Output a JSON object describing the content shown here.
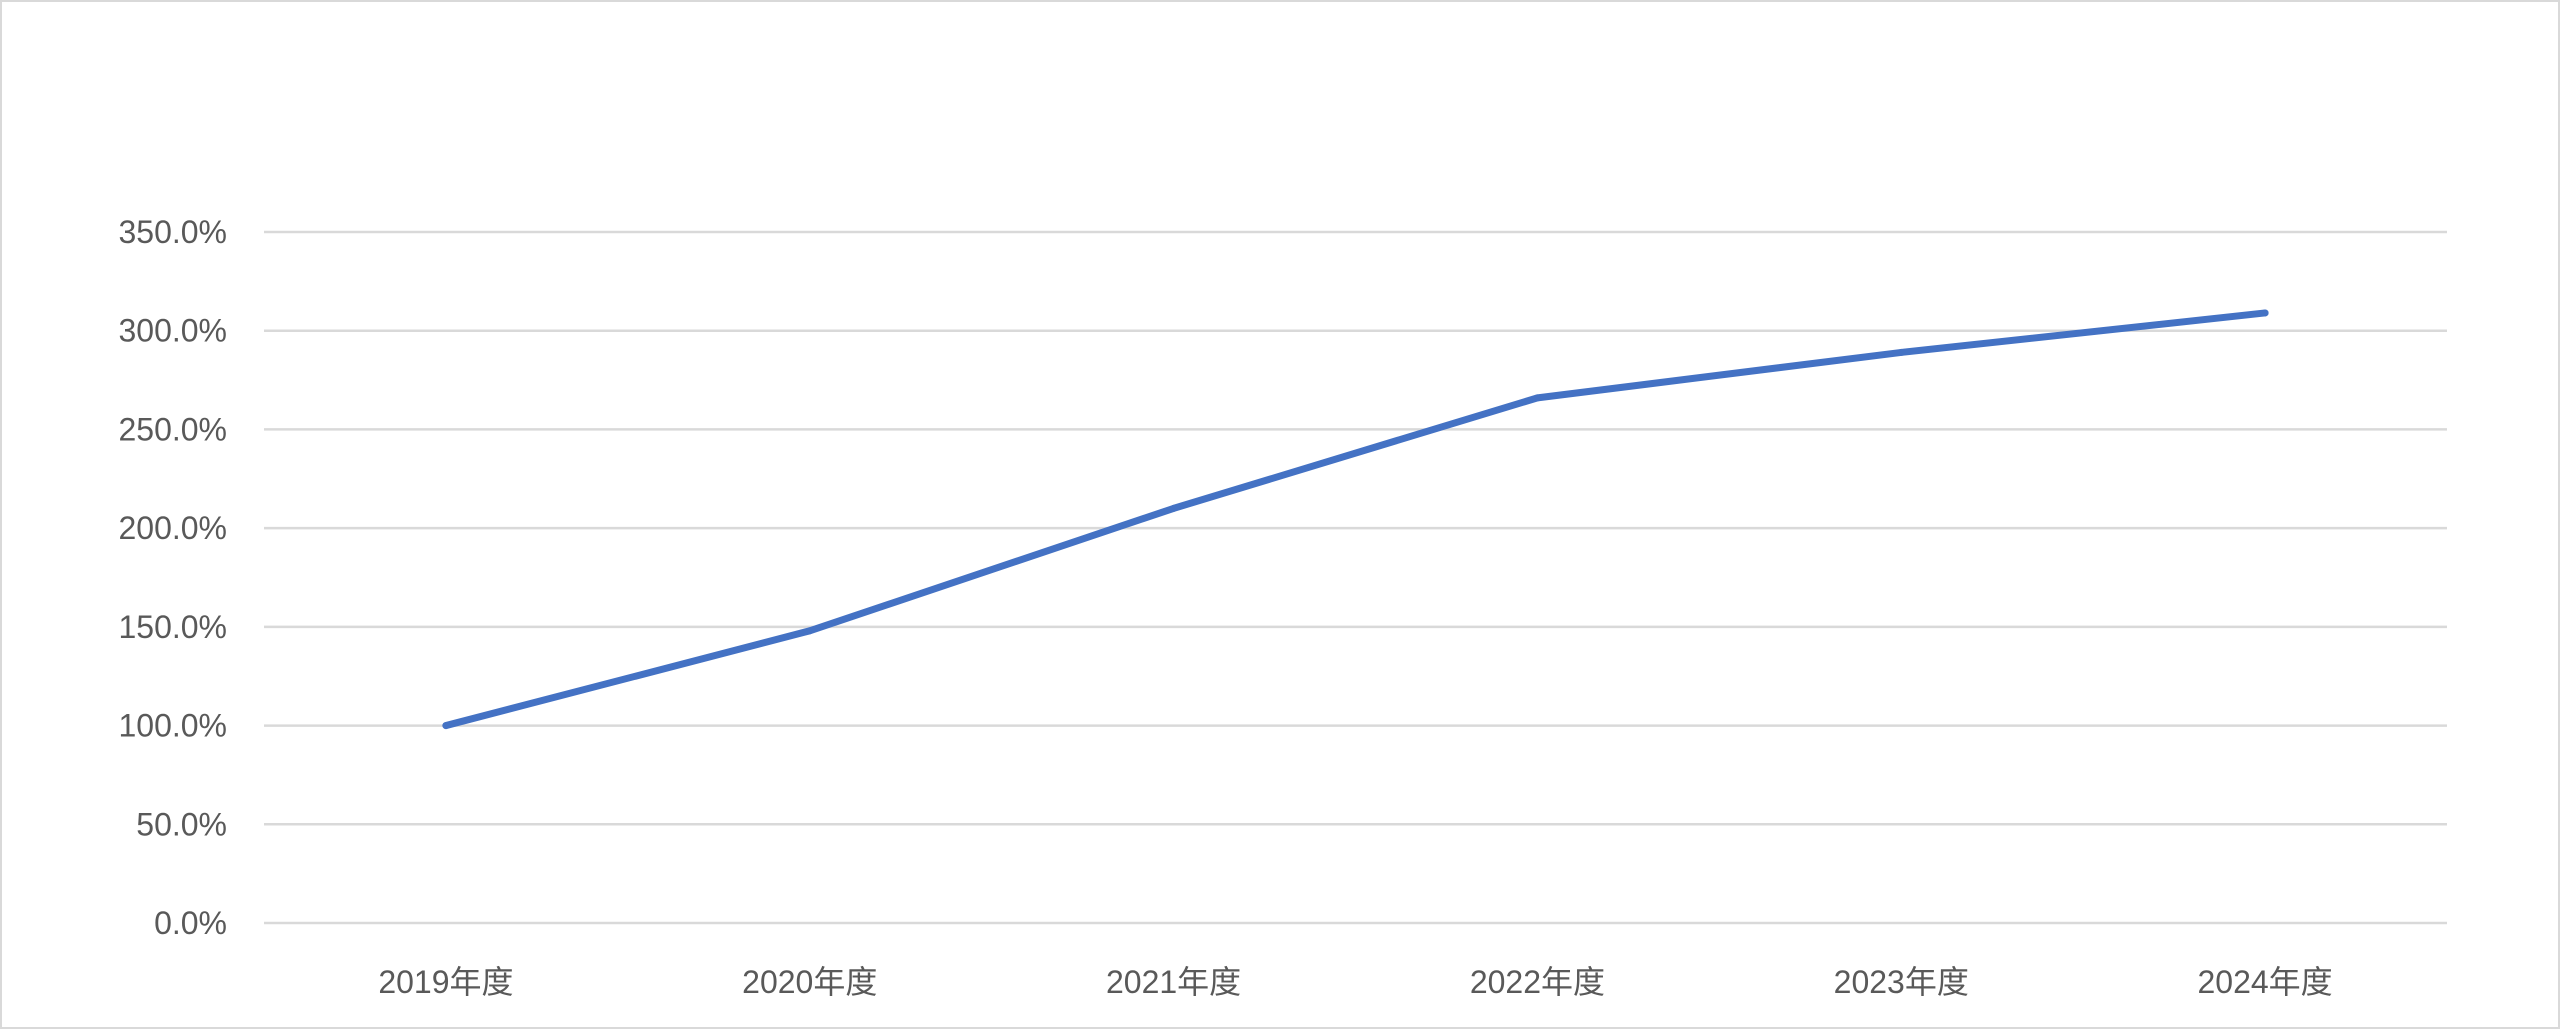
{
  "chart_data": {
    "type": "line",
    "title": "",
    "xlabel": "",
    "ylabel": "",
    "categories": [
      "2019年度",
      "2020年度",
      "2021年度",
      "2022年度",
      "2023年度",
      "2024年度"
    ],
    "series": [
      {
        "values": [
          100.0,
          148.0,
          210.0,
          266.0,
          289.0,
          309.0
        ],
        "color": "#4472C4"
      }
    ],
    "ylim": [
      0,
      350
    ],
    "y_ticks": [
      0,
      50,
      100,
      150,
      200,
      250,
      300,
      350
    ],
    "y_tick_labels": [
      "0.0%",
      "50.0%",
      "100.0%",
      "150.0%",
      "200.0%",
      "250.0%",
      "300.0%",
      "350.0%"
    ],
    "grid": true,
    "legend": "none"
  }
}
